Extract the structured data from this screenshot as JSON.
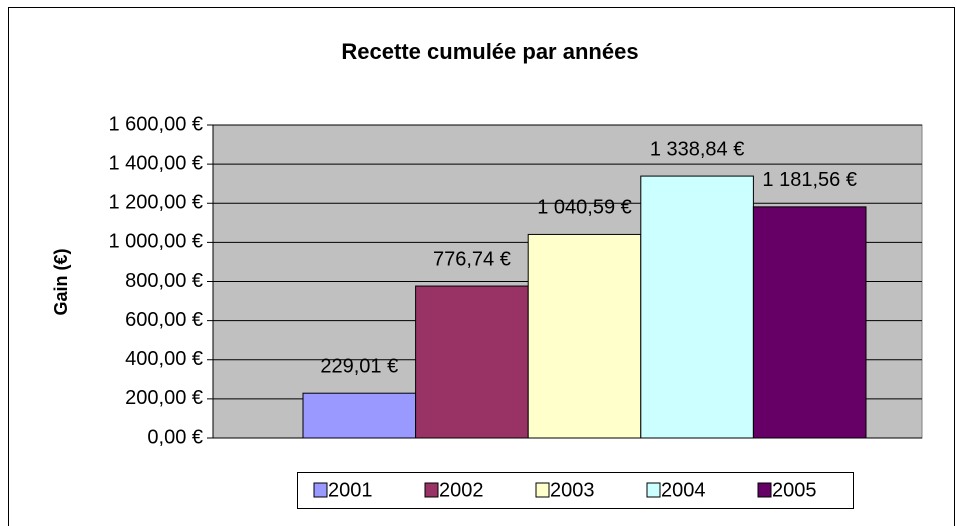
{
  "chart_data": {
    "type": "bar",
    "title": "Recette cumulée par années",
    "y_label": "Gain (€)",
    "categories": [
      null
    ],
    "series": [
      {
        "name": "2001",
        "color": "#9999FF",
        "values": [
          229.01
        ],
        "value_labels": [
          "229,01 €"
        ]
      },
      {
        "name": "2002",
        "color": "#993366",
        "values": [
          776.74
        ],
        "value_labels": [
          "776,74 €"
        ]
      },
      {
        "name": "2003",
        "color": "#FFFFCC",
        "values": [
          1040.59
        ],
        "value_labels": [
          "1 040,59 €"
        ]
      },
      {
        "name": "2004",
        "color": "#CCFFFF",
        "values": [
          1338.84
        ],
        "value_labels": [
          "1 338,84 €"
        ]
      },
      {
        "name": "2005",
        "color": "#660066",
        "values": [
          1181.56
        ],
        "value_labels": [
          "1 181,56 €"
        ]
      }
    ],
    "ylim": [
      0,
      1600
    ],
    "yticks": [
      {
        "value": 0,
        "label": "0,00 €"
      },
      {
        "value": 200,
        "label": "200,00 €"
      },
      {
        "value": 400,
        "label": "400,00 €"
      },
      {
        "value": 600,
        "label": "600,00 €"
      },
      {
        "value": 800,
        "label": "800,00 €"
      },
      {
        "value": 1000,
        "label": "1 000,00 €"
      },
      {
        "value": 1200,
        "label": "1 200,00 €"
      },
      {
        "value": 1400,
        "label": "1 400,00 €"
      },
      {
        "value": 1600,
        "label": "1 600,00 €"
      }
    ],
    "grid": true,
    "legend": "bottom"
  }
}
